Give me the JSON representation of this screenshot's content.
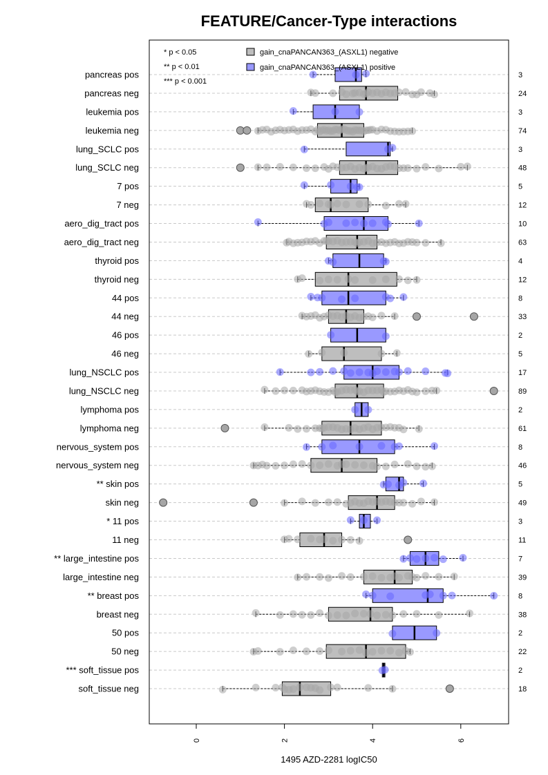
{
  "chart_data": {
    "type": "boxplot",
    "title": "FEATURE/Cancer-Type interactions",
    "xlabel": "1495 AZD-2281 logIC50",
    "xlim": [
      -1,
      7.2
    ],
    "xticks": [
      "0",
      "2",
      "4",
      "6"
    ],
    "xtick_values": [
      0,
      2,
      4,
      6
    ],
    "grid": "horizontal dashed",
    "orientation": "horizontal",
    "significance_legend": [
      "* p < 0.05",
      "** p < 0.01",
      "*** p < 0.001"
    ],
    "series_legend": [
      {
        "name": "gain_cnaPANCAN363_(ASXL1) negative",
        "color": "#bebebe"
      },
      {
        "name": "gain_cnaPANCAN363_(ASXL1) positive",
        "color": "#9999ff"
      }
    ],
    "colors": {
      "neg_fill": "#bebebe",
      "neg_point": "#a6a6a6",
      "pos_fill": "#9999ff",
      "pos_point": "#6666ff",
      "grid": "#c8c8c8"
    },
    "groups": [
      {
        "label": "pancreas pos",
        "n": "3",
        "type": "pos",
        "q1": 3.15,
        "median": 3.62,
        "q3": 3.75,
        "wmin": 2.65,
        "wmax": 3.85,
        "outliers": [],
        "points": [
          2.65,
          3.62,
          3.85
        ]
      },
      {
        "label": "pancreas neg",
        "n": "24",
        "type": "neg",
        "q1": 3.25,
        "median": 3.85,
        "q3": 4.57,
        "wmin": 2.6,
        "wmax": 5.4,
        "outliers": [],
        "points": [
          2.6,
          2.7,
          3.1,
          3.3,
          3.4,
          3.55,
          3.6,
          3.7,
          3.8,
          3.85,
          3.9,
          4.0,
          4.1,
          4.2,
          4.3,
          4.4,
          4.5,
          4.6,
          4.75,
          4.9,
          5.0,
          5.1,
          5.3,
          5.4
        ]
      },
      {
        "label": "leukemia pos",
        "n": "3",
        "type": "pos",
        "q1": 2.65,
        "median": 3.15,
        "q3": 3.7,
        "wmin": 2.2,
        "wmax": 3.7,
        "outliers": [],
        "points": [
          2.2,
          3.15,
          3.7
        ]
      },
      {
        "label": "leukemia neg",
        "n": "74",
        "type": "neg",
        "q1": 2.75,
        "median": 3.3,
        "q3": 3.8,
        "wmin": 1.4,
        "wmax": 4.9,
        "outliers": [
          1.0,
          1.15
        ],
        "points": [
          1.4,
          1.5,
          1.6,
          1.7,
          1.8,
          1.9,
          2.0,
          2.1,
          2.2,
          2.3,
          2.4,
          2.5,
          2.6,
          2.7,
          2.75,
          2.8,
          2.85,
          2.9,
          2.95,
          3.0,
          3.05,
          3.1,
          3.15,
          3.2,
          3.25,
          3.3,
          3.35,
          3.4,
          3.45,
          3.5,
          3.55,
          3.6,
          3.65,
          3.7,
          3.75,
          3.8,
          3.85,
          3.9,
          3.95,
          4.0,
          4.1,
          4.2,
          4.3,
          4.4,
          4.5,
          4.6,
          4.7,
          4.8,
          4.9
        ]
      },
      {
        "label": "lung_SCLC pos",
        "n": "3",
        "type": "pos",
        "q1": 3.4,
        "median": 4.35,
        "q3": 4.4,
        "wmin": 2.45,
        "wmax": 4.45,
        "outliers": [],
        "points": [
          2.45,
          4.35,
          4.45
        ]
      },
      {
        "label": "lung_SCLC neg",
        "n": "48",
        "type": "neg",
        "q1": 3.25,
        "median": 3.85,
        "q3": 4.57,
        "wmin": 1.4,
        "wmax": 6.15,
        "outliers": [
          1.0
        ],
        "points": [
          1.4,
          1.6,
          1.9,
          2.2,
          2.5,
          2.7,
          2.9,
          3.0,
          3.1,
          3.2,
          3.3,
          3.4,
          3.5,
          3.6,
          3.7,
          3.8,
          3.85,
          3.9,
          4.0,
          4.1,
          4.2,
          4.3,
          4.4,
          4.5,
          4.6,
          4.7,
          4.8,
          5.0,
          5.2,
          5.5,
          6.0,
          6.15
        ]
      },
      {
        "label": "7 pos",
        "n": "5",
        "type": "pos",
        "q1": 3.05,
        "median": 3.5,
        "q3": 3.65,
        "wmin": 2.45,
        "wmax": 3.7,
        "outliers": [],
        "points": [
          2.45,
          3.05,
          3.5,
          3.65,
          3.7
        ]
      },
      {
        "label": "7 neg",
        "n": "12",
        "type": "neg",
        "q1": 2.7,
        "median": 3.05,
        "q3": 3.9,
        "wmin": 2.5,
        "wmax": 4.75,
        "outliers": [],
        "points": [
          2.5,
          2.6,
          2.8,
          3.0,
          3.05,
          3.2,
          3.4,
          3.7,
          3.9,
          4.3,
          4.6,
          4.75
        ]
      },
      {
        "label": "aero_dig_tract pos",
        "n": "10",
        "type": "pos",
        "q1": 2.9,
        "median": 3.8,
        "q3": 4.35,
        "wmin": 1.4,
        "wmax": 5.05,
        "outliers": [],
        "points": [
          1.4,
          2.9,
          3.0,
          3.4,
          3.6,
          3.8,
          4.0,
          4.3,
          4.35,
          5.05
        ]
      },
      {
        "label": "aero_dig_tract neg",
        "n": "63",
        "type": "neg",
        "q1": 2.95,
        "median": 3.65,
        "q3": 4.1,
        "wmin": 2.05,
        "wmax": 5.55,
        "outliers": [],
        "points": [
          2.05,
          2.1,
          2.2,
          2.3,
          2.4,
          2.5,
          2.6,
          2.7,
          2.8,
          2.9,
          2.95,
          3.0,
          3.1,
          3.2,
          3.3,
          3.4,
          3.5,
          3.6,
          3.65,
          3.7,
          3.8,
          3.9,
          4.0,
          4.1,
          4.2,
          4.3,
          4.4,
          4.5,
          4.6,
          4.7,
          4.8,
          4.9,
          5.0,
          5.2,
          5.55
        ]
      },
      {
        "label": "thyroid pos",
        "n": "4",
        "type": "pos",
        "q1": 3.1,
        "median": 3.7,
        "q3": 4.25,
        "wmin": 3.0,
        "wmax": 4.3,
        "outliers": [],
        "points": [
          3.0,
          3.1,
          4.25,
          4.3
        ]
      },
      {
        "label": "thyroid neg",
        "n": "12",
        "type": "neg",
        "q1": 2.7,
        "median": 3.45,
        "q3": 4.55,
        "wmin": 2.3,
        "wmax": 5.0,
        "outliers": [],
        "points": [
          2.3,
          2.4,
          2.8,
          3.0,
          3.2,
          3.45,
          3.6,
          4.0,
          4.3,
          4.6,
          4.8,
          5.0
        ]
      },
      {
        "label": "44 pos",
        "n": "8",
        "type": "pos",
        "q1": 2.85,
        "median": 3.45,
        "q3": 4.3,
        "wmin": 2.6,
        "wmax": 4.7,
        "outliers": [],
        "points": [
          2.6,
          2.75,
          2.85,
          3.3,
          3.6,
          4.3,
          4.4,
          4.7
        ]
      },
      {
        "label": "44 neg",
        "n": "33",
        "type": "neg",
        "q1": 3.0,
        "median": 3.4,
        "q3": 3.8,
        "wmin": 2.4,
        "wmax": 4.5,
        "outliers": [
          5.0,
          6.3
        ],
        "points": [
          2.4,
          2.5,
          2.6,
          2.7,
          2.8,
          2.9,
          3.0,
          3.1,
          3.2,
          3.3,
          3.4,
          3.5,
          3.6,
          3.7,
          3.8,
          3.9,
          4.0,
          4.2,
          4.5
        ]
      },
      {
        "label": "46 pos",
        "n": "2",
        "type": "pos",
        "q1": 3.05,
        "median": 3.65,
        "q3": 4.3,
        "wmin": 3.05,
        "wmax": 4.3,
        "outliers": [],
        "points": [
          3.05,
          4.3
        ]
      },
      {
        "label": "46 neg",
        "n": "5",
        "type": "neg",
        "q1": 2.85,
        "median": 3.35,
        "q3": 4.2,
        "wmin": 2.55,
        "wmax": 4.55,
        "outliers": [],
        "points": [
          2.55,
          2.85,
          3.35,
          4.2,
          4.55
        ]
      },
      {
        "label": "lung_NSCLC pos",
        "n": "17",
        "type": "pos",
        "q1": 3.35,
        "median": 4.0,
        "q3": 4.6,
        "wmin": 1.9,
        "wmax": 5.7,
        "outliers": [],
        "points": [
          1.9,
          2.6,
          2.8,
          3.1,
          3.35,
          3.5,
          3.7,
          3.9,
          4.0,
          4.1,
          4.3,
          4.5,
          4.6,
          4.8,
          5.2,
          5.65,
          5.7
        ]
      },
      {
        "label": "lung_NSCLC neg",
        "n": "89",
        "type": "neg",
        "q1": 3.15,
        "median": 3.65,
        "q3": 4.25,
        "wmin": 1.55,
        "wmax": 5.45,
        "outliers": [
          6.75
        ],
        "points": [
          1.55,
          1.8,
          2.0,
          2.2,
          2.4,
          2.5,
          2.6,
          2.7,
          2.8,
          2.9,
          3.0,
          3.1,
          3.15,
          3.2,
          3.3,
          3.4,
          3.5,
          3.6,
          3.65,
          3.7,
          3.8,
          3.9,
          4.0,
          4.1,
          4.2,
          4.25,
          4.3,
          4.4,
          4.5,
          4.6,
          4.7,
          4.8,
          4.9,
          5.0,
          5.2,
          5.35,
          5.45
        ]
      },
      {
        "label": "lymphoma pos",
        "n": "2",
        "type": "pos",
        "q1": 3.6,
        "median": 3.75,
        "q3": 3.9,
        "wmin": 3.6,
        "wmax": 3.9,
        "outliers": [],
        "points": [
          3.6,
          3.9
        ]
      },
      {
        "label": "lymphoma neg",
        "n": "61",
        "type": "neg",
        "q1": 2.85,
        "median": 3.5,
        "q3": 4.2,
        "wmin": 1.55,
        "wmax": 5.05,
        "outliers": [
          0.65
        ],
        "points": [
          1.55,
          2.1,
          2.3,
          2.5,
          2.7,
          2.8,
          2.85,
          2.9,
          3.0,
          3.1,
          3.2,
          3.3,
          3.4,
          3.5,
          3.6,
          3.7,
          3.8,
          3.9,
          4.0,
          4.1,
          4.2,
          4.3,
          4.4,
          4.5,
          4.6,
          4.7,
          5.05
        ]
      },
      {
        "label": "nervous_system pos",
        "n": "8",
        "type": "pos",
        "q1": 2.85,
        "median": 3.7,
        "q3": 4.5,
        "wmin": 2.5,
        "wmax": 5.4,
        "outliers": [],
        "points": [
          2.5,
          2.85,
          3.1,
          3.7,
          4.2,
          4.5,
          4.6,
          5.4
        ]
      },
      {
        "label": "nervous_system neg",
        "n": "46",
        "type": "neg",
        "q1": 2.6,
        "median": 3.3,
        "q3": 4.1,
        "wmin": 1.3,
        "wmax": 5.35,
        "outliers": [],
        "points": [
          1.3,
          1.4,
          1.5,
          1.6,
          1.8,
          2.0,
          2.2,
          2.4,
          2.6,
          2.8,
          3.0,
          3.2,
          3.3,
          3.4,
          3.6,
          3.8,
          4.0,
          4.1,
          4.3,
          4.5,
          4.8,
          5.0,
          5.2,
          5.35
        ]
      },
      {
        "label": "** skin pos",
        "n": "5",
        "type": "pos",
        "q1": 4.3,
        "median": 4.6,
        "q3": 4.7,
        "wmin": 4.25,
        "wmax": 5.15,
        "outliers": [],
        "points": [
          4.25,
          4.35,
          4.6,
          4.7,
          5.15
        ]
      },
      {
        "label": "skin neg",
        "n": "49",
        "type": "neg",
        "q1": 3.45,
        "median": 4.1,
        "q3": 4.5,
        "wmin": 2.0,
        "wmax": 5.4,
        "outliers": [
          -0.75,
          1.3
        ],
        "points": [
          2.0,
          2.4,
          2.7,
          3.0,
          3.2,
          3.4,
          3.5,
          3.6,
          3.7,
          3.8,
          3.9,
          4.0,
          4.1,
          4.2,
          4.3,
          4.4,
          4.5,
          4.6,
          4.7,
          4.9,
          5.1,
          5.4
        ]
      },
      {
        "label": "* 11 pos",
        "n": "3",
        "type": "pos",
        "q1": 3.7,
        "median": 3.8,
        "q3": 3.95,
        "wmin": 3.5,
        "wmax": 4.1,
        "outliers": [],
        "points": [
          3.5,
          3.8,
          4.1
        ]
      },
      {
        "label": "11 neg",
        "n": "11",
        "type": "neg",
        "q1": 2.35,
        "median": 2.9,
        "q3": 3.3,
        "wmin": 2.0,
        "wmax": 3.7,
        "outliers": [
          4.8
        ],
        "points": [
          2.0,
          2.1,
          2.3,
          2.6,
          2.8,
          2.9,
          3.1,
          3.3,
          3.5,
          3.7
        ]
      },
      {
        "label": "** large_intestine pos",
        "n": "7",
        "type": "pos",
        "q1": 4.85,
        "median": 5.2,
        "q3": 5.5,
        "wmin": 4.7,
        "wmax": 6.05,
        "outliers": [],
        "points": [
          4.7,
          4.85,
          5.0,
          5.2,
          5.4,
          5.6,
          6.05
        ]
      },
      {
        "label": "large_intestine neg",
        "n": "39",
        "type": "neg",
        "q1": 3.8,
        "median": 4.5,
        "q3": 4.9,
        "wmin": 2.3,
        "wmax": 5.85,
        "outliers": [],
        "points": [
          2.3,
          2.5,
          2.8,
          3.0,
          3.3,
          3.5,
          3.8,
          4.0,
          4.2,
          4.4,
          4.5,
          4.6,
          4.8,
          4.9,
          5.0,
          5.2,
          5.5,
          5.85
        ]
      },
      {
        "label": "** breast pos",
        "n": "8",
        "type": "pos",
        "q1": 4.0,
        "median": 5.25,
        "q3": 5.6,
        "wmin": 3.85,
        "wmax": 6.75,
        "outliers": [],
        "points": [
          3.85,
          4.0,
          4.4,
          5.2,
          5.3,
          5.6,
          5.8,
          6.75
        ]
      },
      {
        "label": "breast neg",
        "n": "38",
        "type": "neg",
        "q1": 3.0,
        "median": 3.95,
        "q3": 4.45,
        "wmin": 1.35,
        "wmax": 6.2,
        "outliers": [],
        "points": [
          1.35,
          1.9,
          2.2,
          2.4,
          2.6,
          2.8,
          3.0,
          3.2,
          3.4,
          3.6,
          3.8,
          3.95,
          4.1,
          4.3,
          4.45,
          4.7,
          5.0,
          5.5,
          6.2
        ]
      },
      {
        "label": "50 pos",
        "n": "2",
        "type": "pos",
        "q1": 4.45,
        "median": 4.95,
        "q3": 5.45,
        "wmin": 4.45,
        "wmax": 5.45,
        "outliers": [],
        "points": [
          4.45,
          5.45
        ]
      },
      {
        "label": "50 neg",
        "n": "22",
        "type": "neg",
        "q1": 2.95,
        "median": 3.85,
        "q3": 4.75,
        "wmin": 1.3,
        "wmax": 4.85,
        "outliers": [],
        "points": [
          1.3,
          1.4,
          1.9,
          2.2,
          2.5,
          2.8,
          3.0,
          3.3,
          3.5,
          3.7,
          3.85,
          4.0,
          4.2,
          4.4,
          4.6,
          4.75,
          4.85
        ]
      },
      {
        "label": "*** soft_tissue pos",
        "n": "2",
        "type": "pos",
        "q1": 4.22,
        "median": 4.25,
        "q3": 4.28,
        "wmin": 4.22,
        "wmax": 4.28,
        "outliers": [],
        "points": [
          4.22,
          4.28
        ]
      },
      {
        "label": "soft_tissue neg",
        "n": "18",
        "type": "neg",
        "q1": 1.95,
        "median": 2.35,
        "q3": 3.05,
        "wmin": 0.6,
        "wmax": 4.45,
        "outliers": [
          5.75
        ],
        "points": [
          0.6,
          1.35,
          1.8,
          1.95,
          2.0,
          2.1,
          2.2,
          2.35,
          2.5,
          2.6,
          2.7,
          2.8,
          3.05,
          3.2,
          3.9,
          4.45
        ]
      }
    ]
  }
}
